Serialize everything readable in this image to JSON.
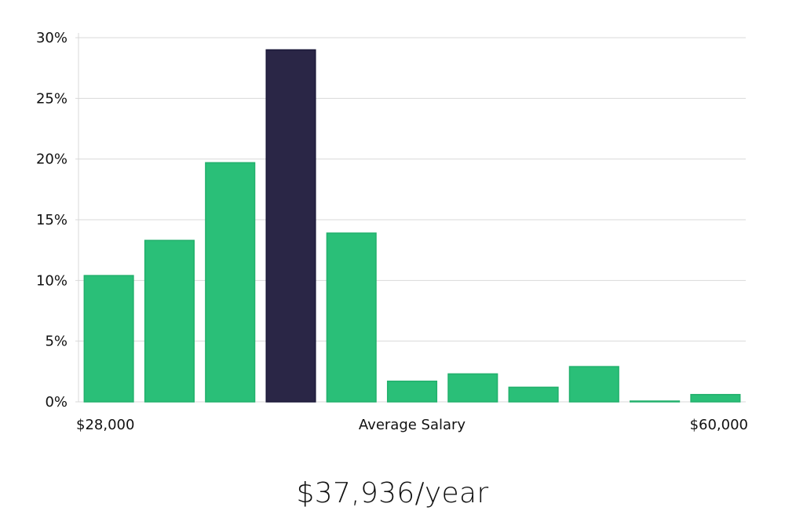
{
  "headline": "$37,936/year",
  "chart_data": {
    "type": "bar",
    "xlabel": "Average Salary",
    "x_min_label": "$28,000",
    "x_max_label": "$60,000",
    "ylim": [
      0,
      30
    ],
    "y_ticks": [
      "0%",
      "5%",
      "10%",
      "15%",
      "20%",
      "25%",
      "30%"
    ],
    "grid": true,
    "values": [
      10.4,
      13.3,
      19.7,
      29.0,
      13.9,
      1.7,
      2.3,
      1.2,
      2.9,
      0.05,
      0.6
    ],
    "highlight_index": 3,
    "colors": {
      "bar": "#2abf78",
      "bar_edge": "#22b06c",
      "highlight": "#2a2646",
      "highlight_edge": "#1c1a3a",
      "grid": "#d9d9d9"
    }
  }
}
